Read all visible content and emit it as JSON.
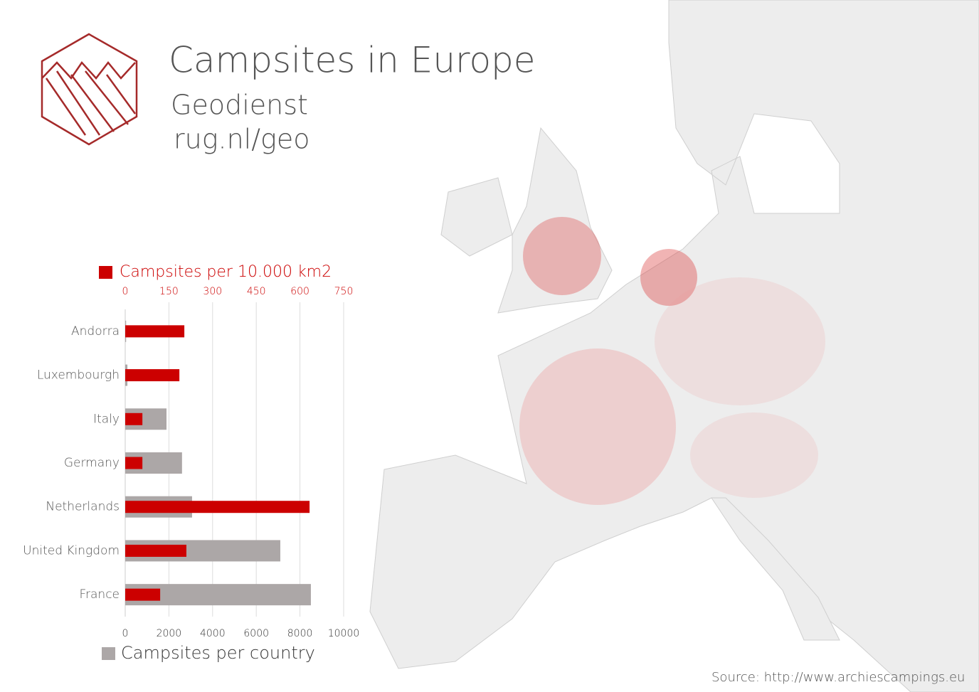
{
  "header": {
    "title": "Campsites in Europe",
    "subtitle": "Geodienst",
    "url": "rug.nl/geo"
  },
  "source": "Source: http://www.archiescampings.eu",
  "chart_data": {
    "type": "bar",
    "orientation": "horizontal",
    "categories": [
      "Andorra",
      "Luxembourgh",
      "Italy",
      "Germany",
      "Netherlands",
      "United Kingdom",
      "France"
    ],
    "series": [
      {
        "name": "Campsites per country",
        "color": "#aca7a7",
        "values": [
          40,
          100,
          1890,
          2600,
          3060,
          7100,
          8500
        ]
      },
      {
        "name": "Campsites per 10.000 km2",
        "color": "#cc0000",
        "axis": "x2",
        "values": [
          203,
          186,
          59,
          59,
          633,
          210,
          120
        ]
      }
    ],
    "xlim": [
      0,
      10000
    ],
    "xticks": [
      0,
      2000,
      4000,
      6000,
      8000,
      10000
    ],
    "x2lim": [
      0,
      750
    ],
    "x2ticks": [
      0,
      150,
      300,
      450,
      600,
      750
    ],
    "grid": true
  }
}
